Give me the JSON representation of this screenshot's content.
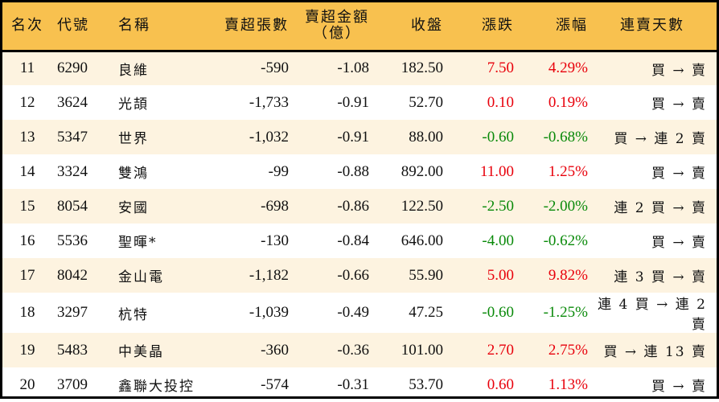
{
  "colors": {
    "header_bg": "#F8C14F",
    "alt_row_bg": "#FDF3E0",
    "up": "#E8000B",
    "down": "#0A8A0A",
    "border": "#000000"
  },
  "header": {
    "rank": "名次",
    "code": "代號",
    "name": "名稱",
    "net_sell_lots": "賣超張數",
    "net_sell_amount_line1": "賣超金額",
    "net_sell_amount_line2": "（億）",
    "close": "收盤",
    "change": "漲跌",
    "change_pct": "漲幅",
    "consecutive_days": "連賣天數"
  },
  "rows": [
    {
      "rank": "11",
      "code": "6290",
      "name": "良維",
      "qty": "-590",
      "amt": "-1.08",
      "close": "182.50",
      "chg": "7.50",
      "pct": "4.29%",
      "dir": "up",
      "days": "買 → 賣"
    },
    {
      "rank": "12",
      "code": "3624",
      "name": "光頡",
      "qty": "-1,733",
      "amt": "-0.91",
      "close": "52.70",
      "chg": "0.10",
      "pct": "0.19%",
      "dir": "up",
      "days": "買 → 賣"
    },
    {
      "rank": "13",
      "code": "5347",
      "name": "世界",
      "qty": "-1,032",
      "amt": "-0.91",
      "close": "88.00",
      "chg": "-0.60",
      "pct": "-0.68%",
      "dir": "down",
      "days": "買 → 連 2 賣"
    },
    {
      "rank": "14",
      "code": "3324",
      "name": "雙鴻",
      "qty": "-99",
      "amt": "-0.88",
      "close": "892.00",
      "chg": "11.00",
      "pct": "1.25%",
      "dir": "up",
      "days": "買 → 賣"
    },
    {
      "rank": "15",
      "code": "8054",
      "name": "安國",
      "qty": "-698",
      "amt": "-0.86",
      "close": "122.50",
      "chg": "-2.50",
      "pct": "-2.00%",
      "dir": "down",
      "days": "連 2 買 → 賣"
    },
    {
      "rank": "16",
      "code": "5536",
      "name": "聖暉*",
      "qty": "-130",
      "amt": "-0.84",
      "close": "646.00",
      "chg": "-4.00",
      "pct": "-0.62%",
      "dir": "down",
      "days": "買 → 賣"
    },
    {
      "rank": "17",
      "code": "8042",
      "name": "金山電",
      "qty": "-1,182",
      "amt": "-0.66",
      "close": "55.90",
      "chg": "5.00",
      "pct": "9.82%",
      "dir": "up",
      "days": "連 3 買 → 賣"
    },
    {
      "rank": "18",
      "code": "3297",
      "name": "杭特",
      "qty": "-1,039",
      "amt": "-0.49",
      "close": "47.25",
      "chg": "-0.60",
      "pct": "-1.25%",
      "dir": "down",
      "days": "連 4 買 → 連 2 賣"
    },
    {
      "rank": "19",
      "code": "5483",
      "name": "中美晶",
      "qty": "-360",
      "amt": "-0.36",
      "close": "101.00",
      "chg": "2.70",
      "pct": "2.75%",
      "dir": "up",
      "days": "買 → 連 13 賣"
    },
    {
      "rank": "20",
      "code": "3709",
      "name": "鑫聯大投控",
      "qty": "-574",
      "amt": "-0.31",
      "close": "53.70",
      "chg": "0.60",
      "pct": "1.13%",
      "dir": "up",
      "days": "買 → 賣"
    }
  ]
}
